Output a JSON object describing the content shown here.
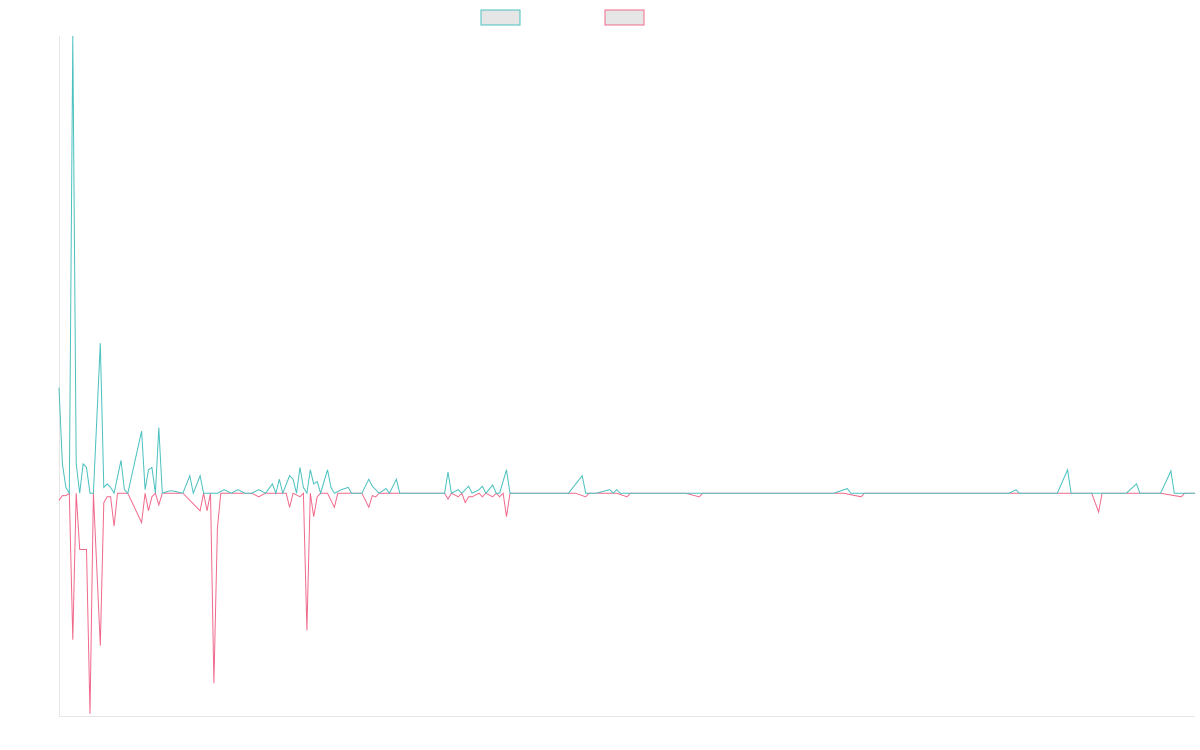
{
  "chart_data": {
    "type": "line",
    "xlim": [
      0,
      330
    ],
    "ylim": [
      -190,
      390
    ],
    "legend": {
      "placement": "top-center",
      "entries": [
        "",
        ""
      ]
    },
    "grid": false,
    "series": [
      {
        "color": "#4bc0c0",
        "points": [
          [
            0,
            90
          ],
          [
            1,
            25
          ],
          [
            2,
            5
          ],
          [
            3,
            0
          ],
          [
            4,
            390
          ],
          [
            5,
            25
          ],
          [
            6,
            0
          ],
          [
            7,
            25
          ],
          [
            8,
            22
          ],
          [
            9,
            0
          ],
          [
            10,
            0
          ],
          [
            12,
            128
          ],
          [
            13,
            5
          ],
          [
            14,
            8
          ],
          [
            15,
            5
          ],
          [
            16,
            0
          ],
          [
            18,
            28
          ],
          [
            19,
            3
          ],
          [
            20,
            0
          ],
          [
            24,
            53
          ],
          [
            25,
            3
          ],
          [
            26,
            20
          ],
          [
            27,
            22
          ],
          [
            28,
            0
          ],
          [
            29,
            56
          ],
          [
            30,
            0
          ],
          [
            32,
            2
          ],
          [
            33,
            2
          ],
          [
            36,
            0
          ],
          [
            38,
            15
          ],
          [
            39,
            0
          ],
          [
            41,
            15
          ],
          [
            42,
            0
          ],
          [
            46,
            0
          ],
          [
            48,
            3
          ],
          [
            50,
            0
          ],
          [
            52,
            3
          ],
          [
            54,
            0
          ],
          [
            56,
            0
          ],
          [
            58,
            3
          ],
          [
            60,
            0
          ],
          [
            62,
            8
          ],
          [
            63,
            0
          ],
          [
            64,
            12
          ],
          [
            65,
            0
          ],
          [
            67,
            15
          ],
          [
            68,
            12
          ],
          [
            69,
            0
          ],
          [
            70,
            22
          ],
          [
            71,
            5
          ],
          [
            72,
            0
          ],
          [
            73,
            20
          ],
          [
            74,
            8
          ],
          [
            75,
            10
          ],
          [
            76,
            0
          ],
          [
            78,
            20
          ],
          [
            79,
            5
          ],
          [
            80,
            0
          ],
          [
            82,
            3
          ],
          [
            84,
            5
          ],
          [
            85,
            0
          ],
          [
            88,
            0
          ],
          [
            90,
            12
          ],
          [
            91,
            6
          ],
          [
            92,
            3
          ],
          [
            93,
            0
          ],
          [
            95,
            4
          ],
          [
            96,
            0
          ],
          [
            98,
            12
          ],
          [
            99,
            0
          ],
          [
            102,
            0
          ],
          [
            104,
            0
          ],
          [
            108,
            0
          ],
          [
            110,
            0
          ],
          [
            112,
            0
          ],
          [
            113,
            18
          ],
          [
            114,
            0
          ],
          [
            116,
            3
          ],
          [
            117,
            0
          ],
          [
            118,
            3
          ],
          [
            119,
            6
          ],
          [
            120,
            0
          ],
          [
            122,
            3
          ],
          [
            123,
            6
          ],
          [
            124,
            0
          ],
          [
            126,
            7
          ],
          [
            127,
            0
          ],
          [
            128,
            0
          ],
          [
            130,
            20
          ],
          [
            131,
            0
          ],
          [
            134,
            0
          ],
          [
            138,
            0
          ],
          [
            142,
            0
          ],
          [
            148,
            0
          ],
          [
            152,
            15
          ],
          [
            153,
            0
          ],
          [
            156,
            0
          ],
          [
            160,
            3
          ],
          [
            161,
            0
          ],
          [
            162,
            3
          ],
          [
            163,
            0
          ],
          [
            170,
            0
          ],
          [
            175,
            0
          ],
          [
            182,
            0
          ],
          [
            188,
            0
          ],
          [
            192,
            0
          ],
          [
            196,
            0
          ],
          [
            200,
            0
          ],
          [
            210,
            0
          ],
          [
            220,
            0
          ],
          [
            225,
            0
          ],
          [
            229,
            4
          ],
          [
            230,
            0
          ],
          [
            240,
            0
          ],
          [
            245,
            0
          ],
          [
            250,
            0
          ],
          [
            260,
            0
          ],
          [
            270,
            0
          ],
          [
            276,
            0
          ],
          [
            278,
            3
          ],
          [
            279,
            0
          ],
          [
            285,
            0
          ],
          [
            290,
            0
          ],
          [
            293,
            20
          ],
          [
            294,
            0
          ],
          [
            300,
            0
          ],
          [
            305,
            0
          ],
          [
            310,
            0
          ],
          [
            313,
            8
          ],
          [
            314,
            0
          ],
          [
            320,
            0
          ],
          [
            323,
            19
          ],
          [
            324,
            0
          ],
          [
            330,
            0
          ]
        ]
      },
      {
        "color": "#f0698b",
        "points": [
          [
            0,
            -6
          ],
          [
            1,
            -2
          ],
          [
            2,
            -2
          ],
          [
            3,
            0
          ],
          [
            4,
            -125
          ],
          [
            5,
            0
          ],
          [
            6,
            -48
          ],
          [
            7,
            -48
          ],
          [
            8,
            -48
          ],
          [
            9,
            -188
          ],
          [
            10,
            0
          ],
          [
            12,
            -130
          ],
          [
            13,
            -8
          ],
          [
            14,
            -3
          ],
          [
            15,
            -3
          ],
          [
            16,
            -28
          ],
          [
            17,
            0
          ],
          [
            20,
            0
          ],
          [
            24,
            -25
          ],
          [
            25,
            0
          ],
          [
            26,
            -15
          ],
          [
            27,
            -3
          ],
          [
            28,
            0
          ],
          [
            29,
            -10
          ],
          [
            30,
            0
          ],
          [
            32,
            0
          ],
          [
            36,
            0
          ],
          [
            41,
            -15
          ],
          [
            42,
            0
          ],
          [
            43,
            -15
          ],
          [
            44,
            0
          ],
          [
            45,
            -162
          ],
          [
            46,
            -30
          ],
          [
            47,
            0
          ],
          [
            52,
            0
          ],
          [
            56,
            0
          ],
          [
            58,
            -3
          ],
          [
            60,
            0
          ],
          [
            62,
            0
          ],
          [
            66,
            0
          ],
          [
            67,
            -12
          ],
          [
            68,
            0
          ],
          [
            70,
            -3
          ],
          [
            71,
            0
          ],
          [
            72,
            -117
          ],
          [
            73,
            0
          ],
          [
            74,
            -20
          ],
          [
            75,
            -3
          ],
          [
            76,
            0
          ],
          [
            78,
            0
          ],
          [
            80,
            -12
          ],
          [
            81,
            0
          ],
          [
            84,
            0
          ],
          [
            86,
            0
          ],
          [
            88,
            0
          ],
          [
            90,
            -12
          ],
          [
            91,
            -2
          ],
          [
            92,
            -3
          ],
          [
            93,
            0
          ],
          [
            98,
            0
          ],
          [
            102,
            0
          ],
          [
            108,
            0
          ],
          [
            112,
            0
          ],
          [
            113,
            -5
          ],
          [
            114,
            0
          ],
          [
            116,
            -3
          ],
          [
            117,
            0
          ],
          [
            118,
            -8
          ],
          [
            119,
            -3
          ],
          [
            120,
            -3
          ],
          [
            122,
            0
          ],
          [
            123,
            -3
          ],
          [
            124,
            0
          ],
          [
            126,
            -3
          ],
          [
            127,
            0
          ],
          [
            128,
            -3
          ],
          [
            129,
            0
          ],
          [
            130,
            -20
          ],
          [
            131,
            0
          ],
          [
            134,
            0
          ],
          [
            140,
            0
          ],
          [
            146,
            0
          ],
          [
            150,
            0
          ],
          [
            153,
            -3
          ],
          [
            154,
            0
          ],
          [
            162,
            0
          ],
          [
            165,
            -3
          ],
          [
            166,
            0
          ],
          [
            170,
            0
          ],
          [
            175,
            0
          ],
          [
            182,
            0
          ],
          [
            186,
            -3
          ],
          [
            187,
            0
          ],
          [
            190,
            0
          ],
          [
            198,
            0
          ],
          [
            205,
            0
          ],
          [
            212,
            0
          ],
          [
            220,
            0
          ],
          [
            228,
            0
          ],
          [
            233,
            -3
          ],
          [
            234,
            0
          ],
          [
            240,
            0
          ],
          [
            246,
            0
          ],
          [
            250,
            0
          ],
          [
            260,
            0
          ],
          [
            270,
            0
          ],
          [
            280,
            0
          ],
          [
            282,
            0
          ],
          [
            290,
            0
          ],
          [
            300,
            0
          ],
          [
            302,
            -16
          ],
          [
            303,
            0
          ],
          [
            310,
            0
          ],
          [
            320,
            0
          ],
          [
            326,
            -3
          ],
          [
            327,
            0
          ],
          [
            330,
            0
          ]
        ]
      }
    ]
  }
}
